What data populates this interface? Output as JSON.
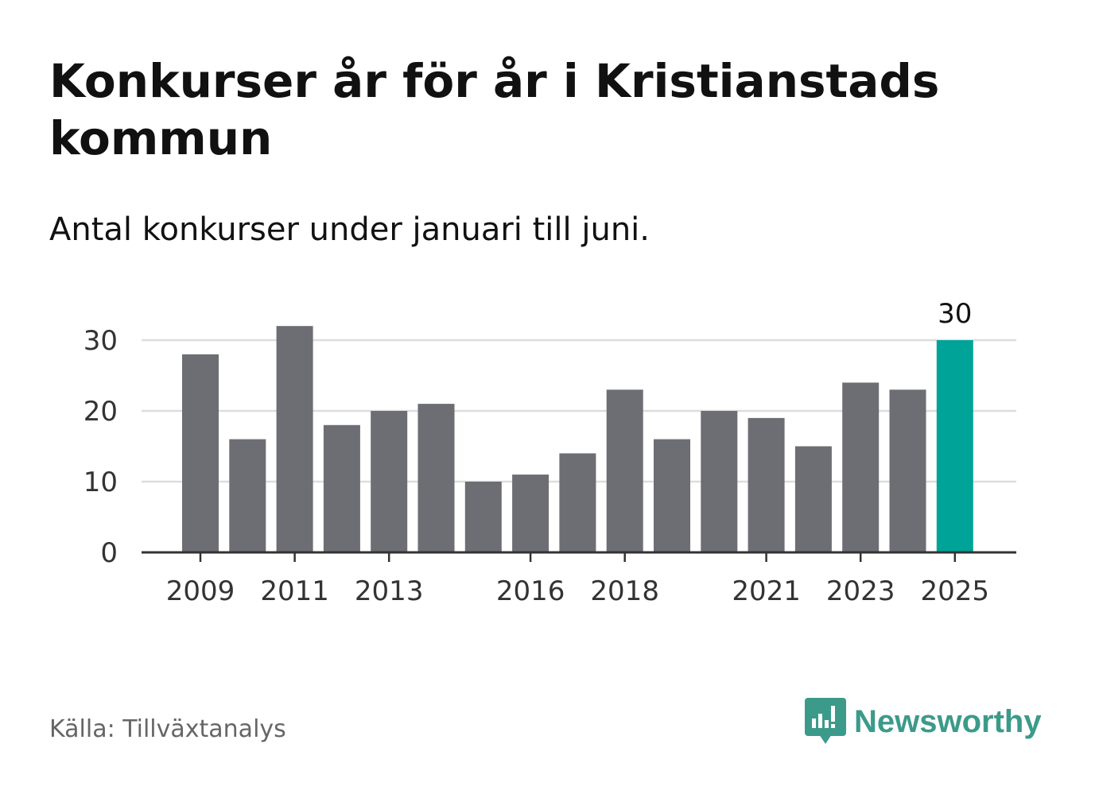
{
  "header": {
    "title": "Konkurser år för år i Kristianstads kommun",
    "subtitle": "Antal konkurser under januari till juni."
  },
  "footer": {
    "source": "Källa: Tillväxtanalys",
    "brand": "Newsworthy"
  },
  "colors": {
    "bar": "#6d6d74",
    "highlight": "#00a398",
    "grid": "#dddddd",
    "axis": "#333333",
    "brand": "#3c9a8a"
  },
  "chart_data": {
    "type": "bar",
    "categories": [
      "2009",
      "2010",
      "2011",
      "2012",
      "2013",
      "2014",
      "2015",
      "2016",
      "2017",
      "2018",
      "2019",
      "2020",
      "2021",
      "2022",
      "2023",
      "2024",
      "2025"
    ],
    "values": [
      28,
      16,
      32,
      18,
      20,
      21,
      10,
      11,
      14,
      23,
      16,
      20,
      19,
      15,
      24,
      23,
      30
    ],
    "x_tick_labels": [
      "2009",
      "2011",
      "2013",
      "2016",
      "2018",
      "2021",
      "2023",
      "2025"
    ],
    "y_ticks": [
      0,
      10,
      20,
      30
    ],
    "ylim": [
      0,
      32
    ],
    "highlight_category": "2025",
    "data_labels": [
      {
        "category": "2025",
        "value": "30"
      }
    ],
    "grid": true,
    "legend": "none"
  }
}
